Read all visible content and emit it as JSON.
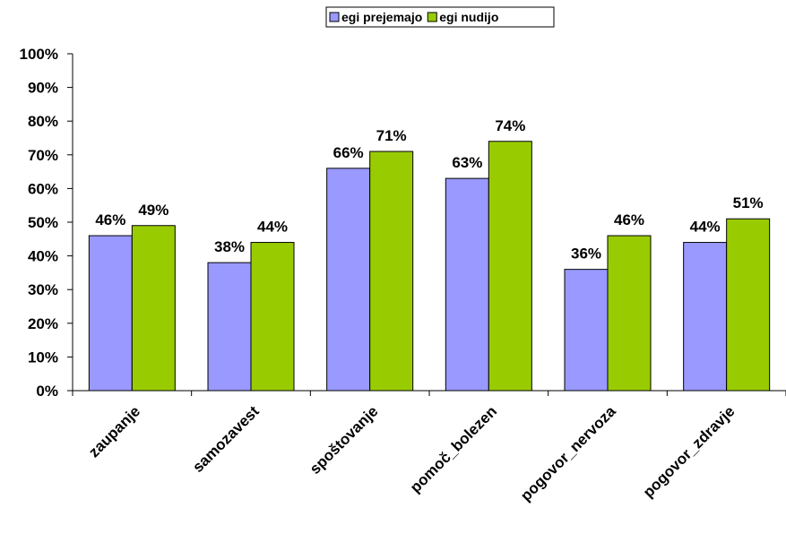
{
  "chart_data": {
    "type": "bar",
    "categories": [
      "zaupanje",
      "samozavest",
      "spoštovanje",
      "pomoč_bolezen",
      "pogovor_nervoza",
      "pogovor_zdravje"
    ],
    "series": [
      {
        "name": "egi prejemajo",
        "values": [
          46,
          38,
          66,
          63,
          36,
          44
        ],
        "labels": [
          "46%",
          "38%",
          "66%",
          "63%",
          "36%",
          "44%"
        ],
        "color": "#9999ff"
      },
      {
        "name": "egi nudijo",
        "values": [
          49,
          44,
          71,
          74,
          46,
          51
        ],
        "labels": [
          "49%",
          "44%",
          "71%",
          "74%",
          "46%",
          "51%"
        ],
        "color": "#99cc00"
      }
    ],
    "ylim": [
      0,
      100
    ],
    "yticks": [
      0,
      10,
      20,
      30,
      40,
      50,
      60,
      70,
      80,
      90,
      100
    ],
    "ytick_labels": [
      "0%",
      "10%",
      "20%",
      "30%",
      "40%",
      "50%",
      "60%",
      "70%",
      "80%",
      "90%",
      "100%"
    ],
    "legend_position": "top-center",
    "grid": false
  }
}
